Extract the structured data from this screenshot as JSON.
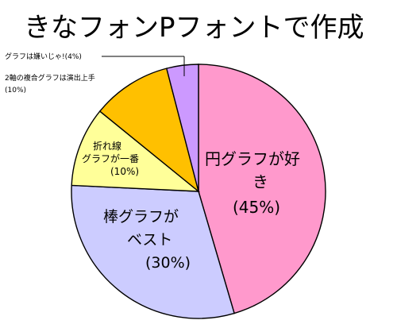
{
  "chart_data": {
    "type": "pie",
    "title": "きなフォンPフォントで作成",
    "slices": [
      {
        "name": "円グラフが好き",
        "value": 45,
        "color": "#ff99cc",
        "label_lines": [
          "円グラフが好",
          "き",
          "(45%)"
        ]
      },
      {
        "name": "棒グラフがベスト",
        "value": 30,
        "color": "#ccccff",
        "label_lines": [
          "棒グラフが",
          "ベスト",
          "(30%)"
        ]
      },
      {
        "name": "折れ線グラフが一番",
        "value": 10,
        "color": "#ffff99",
        "label_lines": [
          "折れ線",
          "グラフが一番",
          "(10%)"
        ]
      },
      {
        "name": "2軸の複合グラフは演出上手",
        "value": 10,
        "color": "#ffc000",
        "label_lines": [
          "2軸の複合グラフは演出上手",
          "(10%)"
        ]
      },
      {
        "name": "グラフは嫌いじゃ!",
        "value": 4,
        "color": "#cc99ff",
        "label_lines": [
          "グラフは嫌いじゃ!(4%)"
        ]
      }
    ]
  }
}
